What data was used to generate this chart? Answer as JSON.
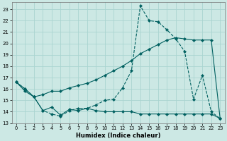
{
  "xlabel": "Humidex (Indice chaleur)",
  "background_color": "#cce8e4",
  "grid_color": "#aad4d0",
  "line_color": "#006060",
  "xlim": [
    -0.5,
    23.5
  ],
  "ylim": [
    13,
    23.6
  ],
  "yticks": [
    13,
    14,
    15,
    16,
    17,
    18,
    19,
    20,
    21,
    22,
    23
  ],
  "xticks": [
    0,
    1,
    2,
    3,
    4,
    5,
    6,
    7,
    8,
    9,
    10,
    11,
    12,
    13,
    14,
    15,
    16,
    17,
    18,
    19,
    20,
    21,
    22,
    23
  ],
  "series1_x": [
    0,
    1,
    2,
    3,
    4,
    5,
    6,
    7,
    8,
    9,
    10,
    11,
    12,
    13,
    14,
    15,
    16,
    17,
    18,
    19,
    20,
    21,
    22,
    23
  ],
  "series1_y": [
    16.6,
    16.0,
    15.3,
    14.1,
    13.8,
    13.6,
    14.1,
    14.3,
    14.3,
    14.6,
    15.0,
    15.1,
    16.1,
    17.6,
    23.3,
    22.0,
    21.9,
    21.2,
    20.4,
    19.3,
    15.1,
    17.2,
    14.0,
    13.4
  ],
  "series2_x": [
    0,
    1,
    2,
    3,
    4,
    5,
    6,
    7,
    8,
    9,
    10,
    11,
    12,
    13,
    14,
    15,
    16,
    17,
    18,
    19,
    20,
    21,
    22,
    23
  ],
  "series2_y": [
    16.6,
    15.8,
    15.3,
    15.5,
    15.8,
    15.8,
    16.1,
    16.3,
    16.5,
    16.8,
    17.2,
    17.6,
    18.0,
    18.5,
    19.1,
    19.5,
    19.9,
    20.3,
    20.5,
    20.4,
    20.3,
    20.3,
    20.3,
    13.4
  ],
  "series3_x": [
    0,
    1,
    2,
    3,
    4,
    5,
    6,
    7,
    8,
    9,
    10,
    11,
    12,
    13,
    14,
    15,
    16,
    17,
    18,
    19,
    20,
    21,
    22,
    23
  ],
  "series3_y": [
    16.6,
    16.0,
    15.3,
    14.1,
    14.4,
    13.7,
    14.2,
    14.1,
    14.3,
    14.1,
    14.0,
    14.0,
    14.0,
    14.0,
    13.8,
    13.8,
    13.8,
    13.8,
    13.8,
    13.8,
    13.8,
    13.8,
    13.8,
    13.4
  ]
}
